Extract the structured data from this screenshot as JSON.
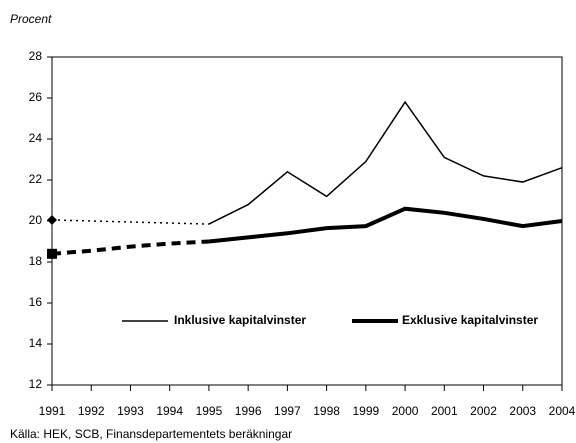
{
  "chart_data": {
    "type": "line",
    "y_label": "Procent",
    "source": "Källa: HEK, SCB, Finansdepartementets beräkningar",
    "categories": [
      "1991",
      "1992",
      "1993",
      "1994",
      "1995",
      "1996",
      "1997",
      "1998",
      "1999",
      "2000",
      "2001",
      "2002",
      "2003",
      "2004"
    ],
    "series": [
      {
        "name": "Inklusive kapitalvinster",
        "color": "#000000",
        "values": [
          20.05,
          20.0,
          19.95,
          19.9,
          19.85,
          20.8,
          22.4,
          21.2,
          22.9,
          25.8,
          23.1,
          22.2,
          21.9,
          22.6
        ]
      },
      {
        "name": "Exklusive kapitalvinster",
        "color": "#000000",
        "values": [
          18.4,
          18.55,
          18.75,
          18.9,
          19.0,
          19.2,
          19.4,
          19.65,
          19.75,
          20.6,
          20.4,
          20.1,
          19.75,
          20.0
        ]
      }
    ],
    "ylim": [
      12,
      28
    ],
    "yticks": [
      12,
      14,
      16,
      18,
      20,
      22,
      24,
      26,
      28
    ],
    "grid": false
  }
}
